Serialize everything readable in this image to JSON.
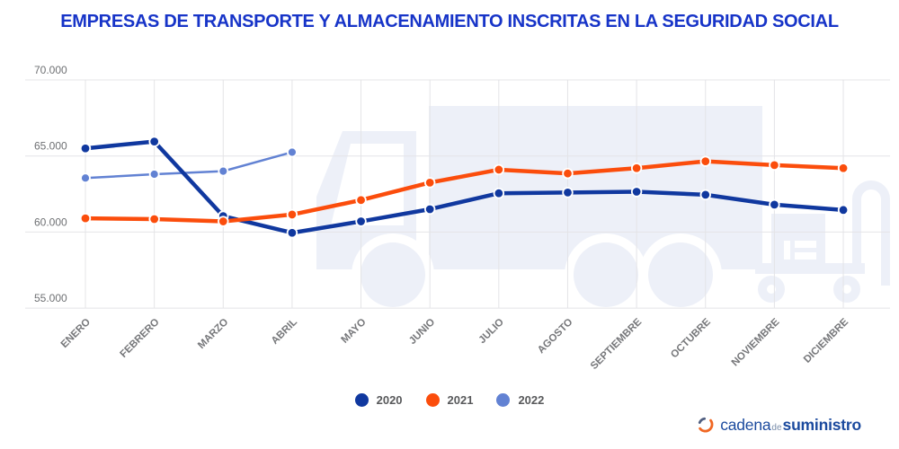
{
  "title": "EMPRESAS DE TRANSPORTE Y ALMACENAMIENTO INSCRITAS EN LA SEGURIDAD SOCIAL",
  "chart_data": {
    "type": "line",
    "title": "EMPRESAS DE TRANSPORTE Y ALMACENAMIENTO INSCRITAS EN LA SEGURIDAD SOCIAL",
    "x": [
      "ENERO",
      "FEBRERO",
      "MARZO",
      "ABRIL",
      "MAYO",
      "JUNIO",
      "JULIO",
      "AGOSTO",
      "SEPTIEMBRE",
      "OCTUBRE",
      "NOVIEMBRE",
      "DICIEMBRE"
    ],
    "series": [
      {
        "name": "2020",
        "color": "#10389f",
        "values": [
          65500,
          65950,
          61050,
          59950,
          60700,
          61500,
          62550,
          62600,
          62650,
          62450,
          61800,
          61450
        ]
      },
      {
        "name": "2021",
        "color": "#fb4d0c",
        "values": [
          60900,
          60850,
          60700,
          61150,
          62100,
          63250,
          64100,
          63850,
          64200,
          64650,
          64400,
          64200
        ]
      },
      {
        "name": "2022",
        "color": "#6282d3",
        "values": [
          63550,
          63800,
          64000,
          65250,
          null,
          null,
          null,
          null,
          null,
          null,
          null,
          null
        ]
      }
    ],
    "ylim": [
      55000,
      70000
    ],
    "yticks": [
      70000,
      65000,
      60000,
      55000
    ],
    "ytick_labels": [
      "70.000",
      "65.000",
      "60.000",
      "55.000"
    ],
    "grid": true,
    "legend_position": "bottom"
  },
  "legend": {
    "items": [
      "2020",
      "2021",
      "2022"
    ]
  },
  "logo": {
    "cadena": "cadena",
    "de": "de",
    "suministro": "suministro"
  },
  "colors": {
    "title": "#1734c8",
    "grid": "#e4e4e7",
    "ytick_label": "#6e7073",
    "xtick_label": "#76777a",
    "legend_text": "#58595b",
    "watermark": "#edf0f8",
    "background": "#ffffff",
    "logo_blue": "#1b4a9e",
    "logo_orange": "#f06723",
    "logo_slate": "#4f5e80"
  }
}
